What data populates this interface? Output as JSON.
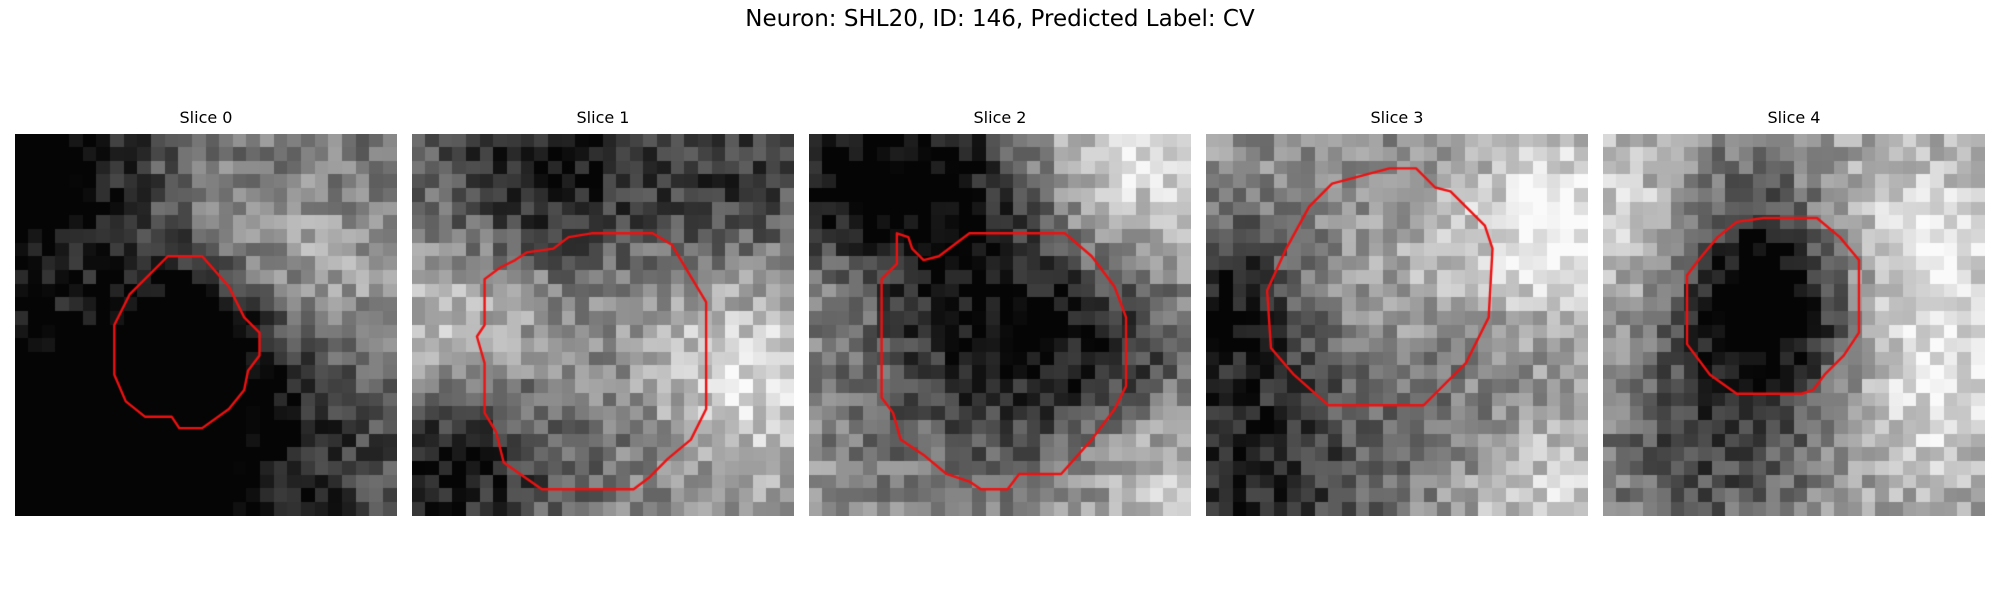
{
  "figure": {
    "title": "Neuron: SHL20, ID: 146, Predicted Label: CV"
  },
  "panels": [
    {
      "title": "Slice 0",
      "image": "grayscale-microscopy-patch",
      "contour_color": "#ee1111",
      "outline": [
        [
          0.4,
          0.32
        ],
        [
          0.49,
          0.32
        ],
        [
          0.56,
          0.4
        ],
        [
          0.6,
          0.48
        ],
        [
          0.64,
          0.52
        ],
        [
          0.64,
          0.58
        ],
        [
          0.61,
          0.62
        ],
        [
          0.6,
          0.67
        ],
        [
          0.56,
          0.72
        ],
        [
          0.49,
          0.77
        ],
        [
          0.43,
          0.77
        ],
        [
          0.41,
          0.74
        ],
        [
          0.34,
          0.74
        ],
        [
          0.29,
          0.7
        ],
        [
          0.26,
          0.63
        ],
        [
          0.26,
          0.5
        ],
        [
          0.3,
          0.42
        ]
      ],
      "dark": [
        [
          0.05,
          0.1,
          0.18,
          0.4
        ],
        [
          0.38,
          0.95,
          0.3,
          0.48
        ],
        [
          0.12,
          0.55,
          0.9,
          0.55
        ],
        [
          0.15,
          0.9,
          0.7,
          0.45
        ],
        [
          0.45,
          0.55,
          0.22,
          0.3
        ]
      ],
      "bright": [
        [
          0.15,
          0.45,
          0.3,
          0.35
        ],
        [
          0.8,
          0.4,
          0.25,
          0.35
        ],
        [
          0.55,
          0.2,
          0.25,
          0.3
        ],
        [
          0.55,
          0.92,
          0.22,
          0.25
        ]
      ]
    },
    {
      "title": "Slice 1",
      "image": "grayscale-microscopy-patch",
      "contour_color": "#ee1111",
      "outline": [
        [
          0.37,
          0.3
        ],
        [
          0.41,
          0.27
        ],
        [
          0.47,
          0.26
        ],
        [
          0.63,
          0.26
        ],
        [
          0.68,
          0.29
        ],
        [
          0.77,
          0.44
        ],
        [
          0.77,
          0.72
        ],
        [
          0.73,
          0.8
        ],
        [
          0.67,
          0.85
        ],
        [
          0.62,
          0.9
        ],
        [
          0.58,
          0.93
        ],
        [
          0.34,
          0.93
        ],
        [
          0.24,
          0.86
        ],
        [
          0.22,
          0.78
        ],
        [
          0.19,
          0.73
        ],
        [
          0.19,
          0.6
        ],
        [
          0.17,
          0.53
        ],
        [
          0.19,
          0.5
        ],
        [
          0.19,
          0.38
        ],
        [
          0.23,
          0.35
        ],
        [
          0.27,
          0.33
        ],
        [
          0.3,
          0.31
        ]
      ],
      "dark": [
        [
          0.35,
          0.1,
          0.4,
          0.55
        ],
        [
          0.08,
          0.9,
          0.25,
          0.5
        ],
        [
          0.5,
          0.7,
          0.4,
          0.25
        ],
        [
          0.9,
          0.1,
          0.25,
          0.3
        ]
      ],
      "bright": [
        [
          0.15,
          0.45,
          0.25,
          0.35
        ],
        [
          0.55,
          0.5,
          0.3,
          0.25
        ],
        [
          0.88,
          0.65,
          0.25,
          0.3
        ]
      ]
    },
    {
      "title": "Slice 2",
      "image": "grayscale-microscopy-patch",
      "contour_color": "#ee1111",
      "outline": [
        [
          0.23,
          0.26
        ],
        [
          0.26,
          0.27
        ],
        [
          0.27,
          0.3
        ],
        [
          0.3,
          0.33
        ],
        [
          0.34,
          0.32
        ],
        [
          0.42,
          0.26
        ],
        [
          0.67,
          0.26
        ],
        [
          0.74,
          0.32
        ],
        [
          0.8,
          0.4
        ],
        [
          0.83,
          0.48
        ],
        [
          0.83,
          0.66
        ],
        [
          0.8,
          0.72
        ],
        [
          0.74,
          0.8
        ],
        [
          0.66,
          0.89
        ],
        [
          0.55,
          0.89
        ],
        [
          0.52,
          0.93
        ],
        [
          0.45,
          0.93
        ],
        [
          0.42,
          0.91
        ],
        [
          0.36,
          0.89
        ],
        [
          0.3,
          0.84
        ],
        [
          0.24,
          0.8
        ],
        [
          0.22,
          0.73
        ],
        [
          0.19,
          0.69
        ],
        [
          0.19,
          0.38
        ],
        [
          0.23,
          0.34
        ]
      ],
      "dark": [
        [
          0.15,
          0.1,
          0.4,
          0.6
        ],
        [
          0.55,
          0.6,
          0.45,
          0.3
        ],
        [
          0.8,
          0.6,
          0.25,
          0.3
        ],
        [
          0.45,
          0.35,
          0.35,
          0.2
        ]
      ],
      "bright": [
        [
          0.8,
          0.12,
          0.3,
          0.35
        ],
        [
          0.1,
          0.4,
          0.2,
          0.3
        ],
        [
          0.9,
          0.85,
          0.25,
          0.3
        ]
      ]
    },
    {
      "title": "Slice 3",
      "image": "grayscale-microscopy-patch",
      "contour_color": "#ee1111",
      "outline": [
        [
          0.33,
          0.13
        ],
        [
          0.48,
          0.09
        ],
        [
          0.55,
          0.09
        ],
        [
          0.6,
          0.14
        ],
        [
          0.64,
          0.15
        ],
        [
          0.69,
          0.2
        ],
        [
          0.73,
          0.24
        ],
        [
          0.75,
          0.3
        ],
        [
          0.74,
          0.48
        ],
        [
          0.68,
          0.6
        ],
        [
          0.57,
          0.71
        ],
        [
          0.32,
          0.71
        ],
        [
          0.23,
          0.63
        ],
        [
          0.17,
          0.56
        ],
        [
          0.16,
          0.41
        ],
        [
          0.21,
          0.3
        ],
        [
          0.27,
          0.19
        ]
      ],
      "dark": [
        [
          0.45,
          0.4,
          0.45,
          0.25
        ],
        [
          0.05,
          0.45,
          0.2,
          0.4
        ],
        [
          0.1,
          0.9,
          0.35,
          0.45
        ],
        [
          0.8,
          0.75,
          0.3,
          0.35
        ]
      ],
      "bright": [
        [
          0.9,
          0.25,
          0.25,
          0.4
        ],
        [
          0.88,
          0.85,
          0.3,
          0.45
        ],
        [
          0.5,
          0.4,
          0.3,
          0.3
        ]
      ]
    },
    {
      "title": "Slice 4",
      "image": "grayscale-microscopy-patch",
      "contour_color": "#ee1111",
      "outline": [
        [
          0.35,
          0.23
        ],
        [
          0.42,
          0.22
        ],
        [
          0.56,
          0.22
        ],
        [
          0.62,
          0.27
        ],
        [
          0.67,
          0.33
        ],
        [
          0.67,
          0.52
        ],
        [
          0.63,
          0.58
        ],
        [
          0.58,
          0.63
        ],
        [
          0.55,
          0.67
        ],
        [
          0.52,
          0.68
        ],
        [
          0.35,
          0.68
        ],
        [
          0.28,
          0.63
        ],
        [
          0.22,
          0.55
        ],
        [
          0.22,
          0.37
        ],
        [
          0.25,
          0.33
        ],
        [
          0.3,
          0.27
        ]
      ],
      "dark": [
        [
          0.43,
          0.45,
          0.22,
          0.75
        ],
        [
          0.3,
          0.15,
          0.25,
          0.25
        ],
        [
          0.3,
          0.8,
          0.3,
          0.35
        ]
      ],
      "bright": [
        [
          0.1,
          0.2,
          0.25,
          0.3
        ],
        [
          0.85,
          0.3,
          0.25,
          0.3
        ],
        [
          0.85,
          0.7,
          0.25,
          0.25
        ]
      ]
    }
  ]
}
